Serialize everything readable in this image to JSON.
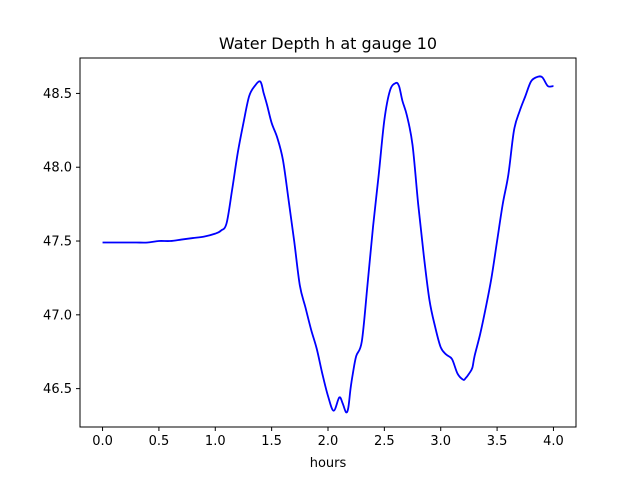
{
  "chart_data": {
    "type": "line",
    "title": "Water Depth h at gauge 10",
    "xlabel": "hours",
    "ylabel": "",
    "xlim": [
      -0.2,
      4.2
    ],
    "ylim": [
      46.24,
      48.74
    ],
    "x_ticks": [
      0.0,
      0.5,
      1.0,
      1.5,
      2.0,
      2.5,
      3.0,
      3.5,
      4.0
    ],
    "x_tick_labels": [
      "0.0",
      "0.5",
      "1.0",
      "1.5",
      "2.0",
      "2.5",
      "3.0",
      "3.5",
      "4.0"
    ],
    "y_ticks": [
      46.5,
      47.0,
      47.5,
      48.0,
      48.5
    ],
    "y_tick_labels": [
      "46.5",
      "47.0",
      "47.5",
      "48.0",
      "48.5"
    ],
    "grid": false,
    "legend": "none",
    "series_color": "#0000ff",
    "series": [
      {
        "x": [
          0.0,
          0.1,
          0.2,
          0.3,
          0.4,
          0.5,
          0.6,
          0.7,
          0.8,
          0.9,
          1.0,
          1.05,
          1.1,
          1.15,
          1.2,
          1.25,
          1.3,
          1.35,
          1.4,
          1.43,
          1.46,
          1.5,
          1.55,
          1.6,
          1.65,
          1.7,
          1.75,
          1.8,
          1.85,
          1.9,
          1.95,
          2.0,
          2.05,
          2.1,
          2.13,
          2.16,
          2.18,
          2.2,
          2.22,
          2.25,
          2.3,
          2.35,
          2.4,
          2.45,
          2.5,
          2.55,
          2.6,
          2.63,
          2.66,
          2.7,
          2.75,
          2.8,
          2.85,
          2.9,
          2.95,
          3.0,
          3.05,
          3.1,
          3.15,
          3.2,
          3.22,
          3.25,
          3.28,
          3.3,
          3.35,
          3.4,
          3.45,
          3.5,
          3.55,
          3.6,
          3.65,
          3.7,
          3.75,
          3.8,
          3.85,
          3.9,
          3.95,
          4.0
        ],
        "y": [
          47.49,
          47.49,
          47.49,
          47.49,
          47.49,
          47.5,
          47.5,
          47.51,
          47.52,
          47.53,
          47.55,
          47.57,
          47.62,
          47.85,
          48.1,
          48.3,
          48.48,
          48.55,
          48.58,
          48.5,
          48.42,
          48.3,
          48.2,
          48.05,
          47.78,
          47.5,
          47.2,
          47.05,
          46.9,
          46.77,
          46.6,
          46.45,
          46.35,
          46.44,
          46.4,
          46.34,
          46.37,
          46.5,
          46.6,
          46.72,
          46.82,
          47.2,
          47.6,
          47.95,
          48.32,
          48.52,
          48.57,
          48.55,
          48.45,
          48.35,
          48.15,
          47.75,
          47.4,
          47.1,
          46.92,
          46.78,
          46.73,
          46.7,
          46.6,
          46.56,
          46.57,
          46.6,
          46.64,
          46.72,
          46.87,
          47.05,
          47.25,
          47.5,
          47.75,
          47.95,
          48.25,
          48.38,
          48.48,
          48.58,
          48.61,
          48.61,
          48.55,
          48.55
        ]
      }
    ]
  }
}
